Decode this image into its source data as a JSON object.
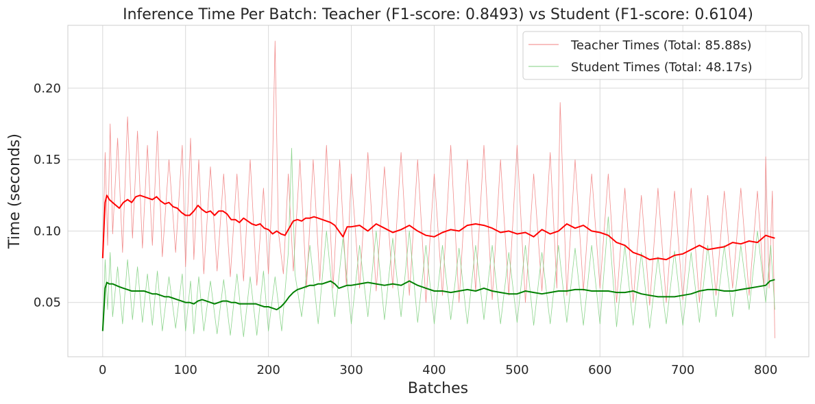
{
  "chart_data": {
    "type": "line",
    "title": "Inference Time Per Batch: Teacher (F1-score: 0.8493) vs Student (F1-score: 0.6104)",
    "xlabel": "Batches",
    "ylabel": "Time (seconds)",
    "xlim": [
      -42,
      852
    ],
    "ylim": [
      0.012,
      0.244
    ],
    "xticks": [
      0,
      100,
      200,
      300,
      400,
      500,
      600,
      700,
      800
    ],
    "yticks": [
      0.05,
      0.1,
      0.15,
      0.2
    ],
    "ytick_labels": [
      "0.05",
      "0.10",
      "0.15",
      "0.20"
    ],
    "grid": true,
    "legend_position": "top-right",
    "series": [
      {
        "name": "Teacher Times (Total: 85.88s)",
        "color": "#f08080",
        "style": "raw",
        "x": [
          0,
          3,
          6,
          9,
          12,
          18,
          24,
          30,
          36,
          42,
          48,
          54,
          60,
          66,
          72,
          80,
          88,
          96,
          100,
          106,
          110,
          116,
          122,
          130,
          138,
          146,
          154,
          162,
          170,
          178,
          186,
          194,
          200,
          204,
          208,
          212,
          218,
          224,
          230,
          238,
          246,
          254,
          262,
          270,
          278,
          286,
          294,
          300,
          310,
          320,
          330,
          340,
          350,
          360,
          370,
          380,
          390,
          400,
          410,
          420,
          430,
          440,
          450,
          460,
          470,
          480,
          490,
          500,
          510,
          520,
          530,
          540,
          548,
          552,
          560,
          570,
          580,
          590,
          600,
          610,
          620,
          630,
          640,
          650,
          660,
          670,
          680,
          690,
          700,
          710,
          720,
          730,
          740,
          750,
          760,
          770,
          780,
          790,
          798,
          800,
          804,
          808,
          811
        ],
        "values": [
          0.081,
          0.155,
          0.09,
          0.175,
          0.098,
          0.165,
          0.085,
          0.18,
          0.095,
          0.17,
          0.088,
          0.16,
          0.09,
          0.17,
          0.082,
          0.15,
          0.085,
          0.16,
          0.075,
          0.165,
          0.08,
          0.15,
          0.07,
          0.145,
          0.072,
          0.14,
          0.068,
          0.14,
          0.065,
          0.15,
          0.062,
          0.13,
          0.07,
          0.12,
          0.233,
          0.1,
          0.07,
          0.14,
          0.072,
          0.15,
          0.06,
          0.15,
          0.065,
          0.16,
          0.06,
          0.15,
          0.062,
          0.14,
          0.06,
          0.155,
          0.058,
          0.145,
          0.06,
          0.155,
          0.055,
          0.15,
          0.05,
          0.14,
          0.055,
          0.16,
          0.05,
          0.15,
          0.058,
          0.16,
          0.052,
          0.15,
          0.055,
          0.16,
          0.05,
          0.14,
          0.058,
          0.155,
          0.06,
          0.19,
          0.055,
          0.15,
          0.058,
          0.14,
          0.06,
          0.14,
          0.05,
          0.13,
          0.05,
          0.125,
          0.048,
          0.13,
          0.05,
          0.128,
          0.052,
          0.13,
          0.05,
          0.125,
          0.055,
          0.128,
          0.06,
          0.13,
          0.055,
          0.128,
          0.06,
          0.152,
          0.06,
          0.128,
          0.025
        ]
      },
      {
        "name": "Student Times (Total: 48.17s)",
        "color": "#7fcf7f",
        "style": "raw",
        "x": [
          0,
          3,
          6,
          9,
          12,
          18,
          24,
          30,
          36,
          42,
          48,
          54,
          60,
          66,
          72,
          80,
          88,
          96,
          100,
          106,
          110,
          116,
          122,
          130,
          138,
          146,
          154,
          162,
          170,
          178,
          186,
          194,
          200,
          208,
          216,
          224,
          228,
          232,
          240,
          250,
          260,
          270,
          280,
          290,
          300,
          310,
          320,
          330,
          340,
          350,
          360,
          370,
          380,
          390,
          400,
          410,
          420,
          430,
          440,
          450,
          460,
          470,
          480,
          490,
          500,
          510,
          520,
          530,
          540,
          550,
          560,
          570,
          580,
          590,
          600,
          610,
          620,
          630,
          640,
          650,
          660,
          670,
          680,
          690,
          700,
          710,
          720,
          730,
          740,
          750,
          760,
          770,
          780,
          790,
          800,
          806,
          811
        ],
        "values": [
          0.03,
          0.08,
          0.045,
          0.085,
          0.04,
          0.075,
          0.035,
          0.08,
          0.038,
          0.075,
          0.036,
          0.07,
          0.034,
          0.072,
          0.03,
          0.068,
          0.032,
          0.07,
          0.03,
          0.065,
          0.028,
          0.068,
          0.03,
          0.065,
          0.028,
          0.066,
          0.027,
          0.07,
          0.026,
          0.068,
          0.027,
          0.072,
          0.03,
          0.068,
          0.03,
          0.085,
          0.158,
          0.07,
          0.04,
          0.09,
          0.035,
          0.1,
          0.04,
          0.095,
          0.035,
          0.09,
          0.04,
          0.1,
          0.038,
          0.095,
          0.04,
          0.1,
          0.036,
          0.09,
          0.035,
          0.09,
          0.038,
          0.088,
          0.035,
          0.09,
          0.038,
          0.09,
          0.035,
          0.085,
          0.036,
          0.09,
          0.034,
          0.085,
          0.035,
          0.09,
          0.036,
          0.088,
          0.034,
          0.09,
          0.035,
          0.11,
          0.033,
          0.09,
          0.034,
          0.085,
          0.032,
          0.082,
          0.035,
          0.086,
          0.034,
          0.085,
          0.036,
          0.09,
          0.04,
          0.09,
          0.04,
          0.09,
          0.045,
          0.1,
          0.05,
          0.09,
          0.045
        ]
      },
      {
        "name": "",
        "color": "#ff0000",
        "style": "smoothed",
        "x": [
          0,
          2,
          3,
          5,
          8,
          12,
          16,
          20,
          25,
          30,
          35,
          40,
          45,
          50,
          55,
          60,
          65,
          70,
          75,
          80,
          85,
          90,
          95,
          100,
          105,
          110,
          115,
          120,
          125,
          130,
          135,
          140,
          145,
          150,
          155,
          160,
          165,
          170,
          175,
          180,
          185,
          190,
          195,
          200,
          205,
          210,
          215,
          220,
          225,
          230,
          235,
          240,
          245,
          250,
          255,
          260,
          265,
          270,
          275,
          280,
          285,
          290,
          295,
          300,
          310,
          320,
          330,
          340,
          350,
          360,
          370,
          380,
          390,
          400,
          410,
          420,
          430,
          440,
          450,
          460,
          470,
          480,
          490,
          500,
          510,
          520,
          530,
          540,
          550,
          560,
          570,
          580,
          590,
          600,
          610,
          620,
          630,
          640,
          650,
          660,
          670,
          680,
          690,
          700,
          710,
          720,
          730,
          740,
          750,
          760,
          770,
          780,
          790,
          800,
          805,
          811
        ],
        "values": [
          0.081,
          0.108,
          0.12,
          0.125,
          0.122,
          0.12,
          0.118,
          0.116,
          0.12,
          0.122,
          0.12,
          0.124,
          0.125,
          0.124,
          0.123,
          0.122,
          0.124,
          0.121,
          0.119,
          0.12,
          0.117,
          0.116,
          0.113,
          0.111,
          0.111,
          0.114,
          0.118,
          0.115,
          0.113,
          0.114,
          0.111,
          0.114,
          0.114,
          0.112,
          0.108,
          0.108,
          0.106,
          0.109,
          0.107,
          0.105,
          0.104,
          0.105,
          0.102,
          0.101,
          0.098,
          0.1,
          0.098,
          0.097,
          0.102,
          0.107,
          0.108,
          0.107,
          0.109,
          0.109,
          0.11,
          0.109,
          0.108,
          0.107,
          0.106,
          0.104,
          0.1,
          0.096,
          0.103,
          0.103,
          0.104,
          0.1,
          0.105,
          0.102,
          0.099,
          0.101,
          0.104,
          0.1,
          0.097,
          0.096,
          0.099,
          0.101,
          0.1,
          0.104,
          0.105,
          0.104,
          0.102,
          0.099,
          0.1,
          0.098,
          0.099,
          0.096,
          0.101,
          0.098,
          0.1,
          0.105,
          0.102,
          0.104,
          0.1,
          0.099,
          0.097,
          0.092,
          0.09,
          0.085,
          0.083,
          0.08,
          0.081,
          0.08,
          0.083,
          0.084,
          0.087,
          0.09,
          0.087,
          0.088,
          0.089,
          0.092,
          0.091,
          0.093,
          0.092,
          0.097,
          0.096,
          0.095
        ]
      },
      {
        "name": "",
        "color": "#008000",
        "style": "smoothed",
        "x": [
          0,
          2,
          3,
          5,
          8,
          12,
          16,
          20,
          25,
          30,
          35,
          40,
          45,
          50,
          55,
          60,
          65,
          70,
          75,
          80,
          85,
          90,
          95,
          100,
          105,
          110,
          115,
          120,
          125,
          130,
          135,
          140,
          145,
          150,
          155,
          160,
          165,
          170,
          175,
          180,
          185,
          190,
          195,
          200,
          205,
          210,
          215,
          220,
          225,
          230,
          235,
          240,
          245,
          250,
          255,
          260,
          265,
          270,
          275,
          280,
          285,
          290,
          295,
          300,
          310,
          320,
          330,
          340,
          350,
          360,
          370,
          380,
          390,
          400,
          410,
          420,
          430,
          440,
          450,
          460,
          470,
          480,
          490,
          500,
          510,
          520,
          530,
          540,
          550,
          560,
          570,
          580,
          590,
          600,
          610,
          620,
          630,
          640,
          650,
          660,
          670,
          680,
          690,
          700,
          710,
          720,
          730,
          740,
          750,
          760,
          770,
          780,
          790,
          800,
          805,
          811
        ],
        "values": [
          0.03,
          0.05,
          0.06,
          0.064,
          0.063,
          0.063,
          0.062,
          0.061,
          0.06,
          0.059,
          0.058,
          0.058,
          0.058,
          0.058,
          0.057,
          0.056,
          0.056,
          0.055,
          0.054,
          0.054,
          0.053,
          0.052,
          0.051,
          0.05,
          0.05,
          0.049,
          0.051,
          0.052,
          0.051,
          0.05,
          0.049,
          0.05,
          0.051,
          0.051,
          0.05,
          0.05,
          0.049,
          0.049,
          0.049,
          0.049,
          0.049,
          0.048,
          0.047,
          0.047,
          0.046,
          0.045,
          0.047,
          0.05,
          0.054,
          0.057,
          0.059,
          0.06,
          0.061,
          0.062,
          0.062,
          0.063,
          0.063,
          0.064,
          0.065,
          0.063,
          0.06,
          0.061,
          0.062,
          0.062,
          0.063,
          0.064,
          0.063,
          0.062,
          0.063,
          0.062,
          0.065,
          0.062,
          0.06,
          0.058,
          0.058,
          0.057,
          0.058,
          0.059,
          0.058,
          0.06,
          0.058,
          0.057,
          0.056,
          0.056,
          0.058,
          0.057,
          0.056,
          0.057,
          0.058,
          0.058,
          0.059,
          0.059,
          0.058,
          0.058,
          0.058,
          0.057,
          0.057,
          0.058,
          0.056,
          0.055,
          0.054,
          0.054,
          0.054,
          0.055,
          0.056,
          0.058,
          0.059,
          0.059,
          0.058,
          0.058,
          0.059,
          0.06,
          0.061,
          0.062,
          0.065,
          0.066
        ]
      }
    ]
  }
}
